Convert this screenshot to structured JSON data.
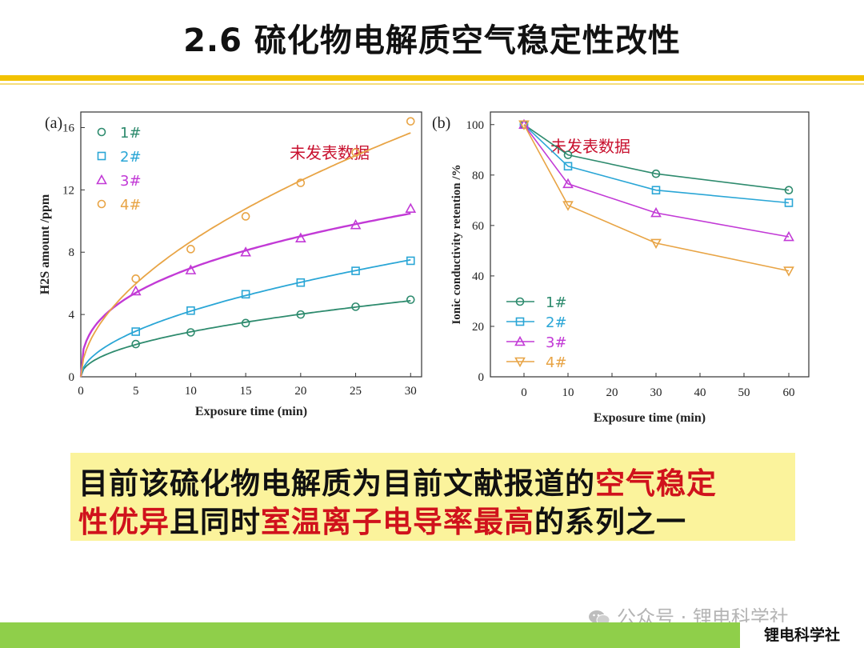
{
  "page": {
    "title": "2.6 硫化物电解质空气稳定性改性",
    "callout_line1": [
      "目前该硫化物电解质为目前文献报道的",
      "空气稳定"
    ],
    "callout_line2": [
      "性优异",
      "且同时",
      "室温离子电导率最高",
      "的系列之一"
    ],
    "watermark": "公众号 · 锂电科学社",
    "footer_brand": "锂电科学社",
    "accent_color": "#f2c200",
    "highlight_color": "#d0121c",
    "footer_color": "#8fcf4a"
  },
  "chart_data": [
    {
      "type": "line",
      "panel_label": "(a)",
      "annotation": "未发表数据",
      "xlabel": "Exposure time (min)",
      "ylabel": "H2S amount  /ppm",
      "xlim": [
        0,
        31
      ],
      "ylim": [
        0,
        17
      ],
      "xticks": [
        0,
        5,
        10,
        15,
        20,
        25,
        30
      ],
      "yticks": [
        0,
        4,
        8,
        12,
        16
      ],
      "x": [
        5,
        10,
        15,
        20,
        25,
        30
      ],
      "series": [
        {
          "name": "1#",
          "marker": "circle",
          "color": "#2e8b6e",
          "values": [
            2.1,
            2.85,
            3.45,
            4.0,
            4.5,
            4.95
          ]
        },
        {
          "name": "2#",
          "marker": "square",
          "color": "#2aa6d6",
          "values": [
            2.9,
            4.25,
            5.3,
            6.05,
            6.8,
            7.45
          ]
        },
        {
          "name": "3#",
          "marker": "triangle",
          "color": "#c23ad6",
          "values": [
            5.5,
            6.85,
            8.0,
            8.9,
            9.75,
            10.8
          ]
        },
        {
          "name": "4#",
          "marker": "circle",
          "color": "#e8a445",
          "values": [
            6.3,
            8.2,
            10.3,
            12.45,
            14.4,
            16.4
          ]
        }
      ]
    },
    {
      "type": "line",
      "panel_label": "(b)",
      "annotation": "未发表数据",
      "xlabel": "Exposure time (min)",
      "ylabel": "Ionic conductivity retention  /%",
      "ylim": [
        0,
        105
      ],
      "xticks": [
        "0",
        "10",
        "20",
        "30",
        "40",
        "50",
        "60"
      ],
      "yticks": [
        0,
        20,
        40,
        60,
        80,
        100
      ],
      "x": [
        0,
        10,
        30,
        60
      ],
      "series": [
        {
          "name": "1#",
          "marker": "circle",
          "color": "#2e8b6e",
          "values": [
            100,
            88,
            80.5,
            74
          ]
        },
        {
          "name": "2#",
          "marker": "square",
          "color": "#2aa6d6",
          "values": [
            100,
            83.5,
            74,
            69
          ]
        },
        {
          "name": "3#",
          "marker": "triangle",
          "color": "#c23ad6",
          "values": [
            100,
            76.5,
            65,
            55.5
          ]
        },
        {
          "name": "4#",
          "marker": "triangle-down",
          "color": "#e8a445",
          "values": [
            100,
            68,
            53,
            42
          ]
        }
      ]
    }
  ]
}
